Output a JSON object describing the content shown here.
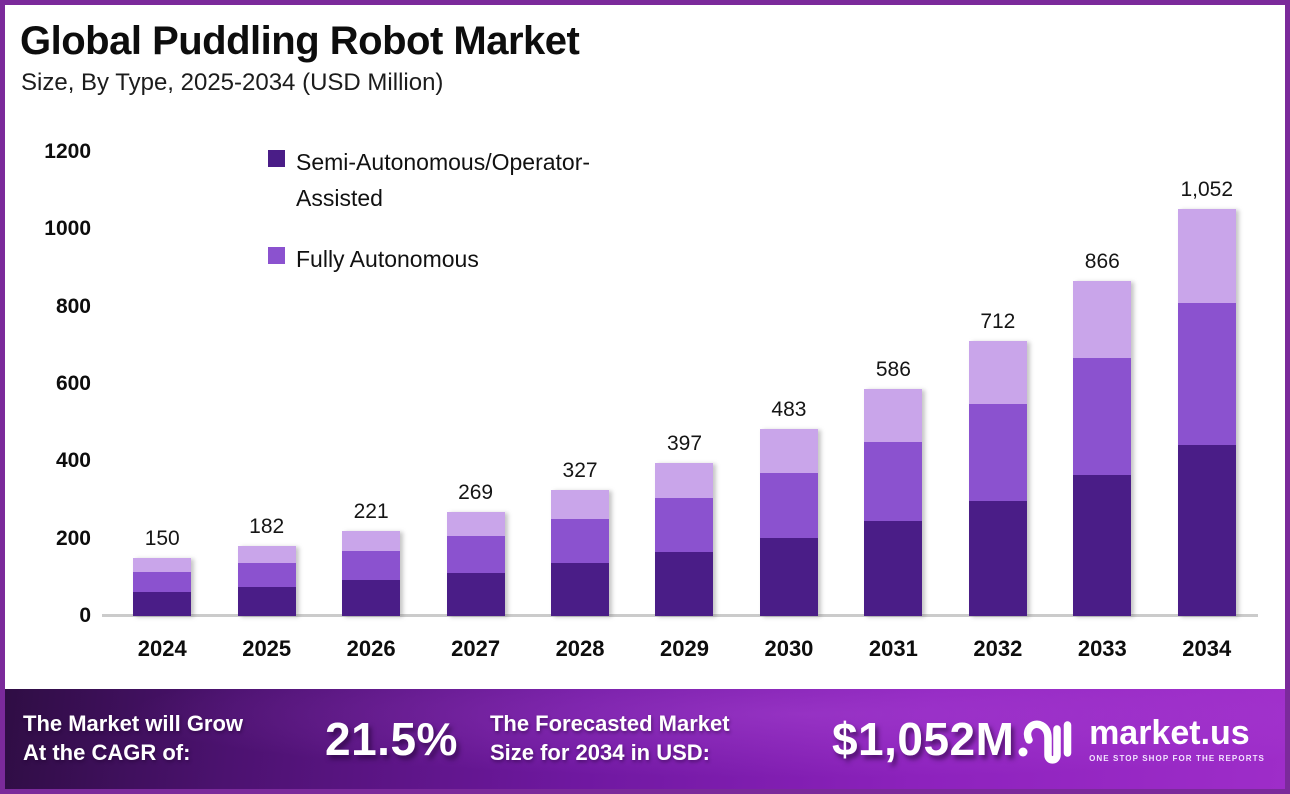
{
  "header": {
    "title": "Global Puddling Robot Market",
    "subtitle": "Size, By Type, 2025-2034 (USD Million)"
  },
  "chart_data": {
    "type": "bar",
    "stacked": true,
    "title": "Global Puddling Robot Market Size, By Type, 2025-2034 (USD Million)",
    "categories": [
      "2024",
      "2025",
      "2026",
      "2027",
      "2028",
      "2029",
      "2030",
      "2031",
      "2032",
      "2033",
      "2034"
    ],
    "totals": [
      150,
      182,
      221,
      269,
      327,
      397,
      483,
      586,
      712,
      866,
      1052
    ],
    "total_labels": [
      "150",
      "182",
      "221",
      "269",
      "327",
      "397",
      "483",
      "586",
      "712",
      "866",
      "1,052"
    ],
    "series": [
      {
        "name": "Semi-Autonomous/Operator-Assisted",
        "color": "#4a1d87",
        "values": [
          62,
          75,
          92,
          112,
          136,
          165,
          202,
          246,
          298,
          364,
          442
        ]
      },
      {
        "name": "Fully Autonomous",
        "color": "#8b52cf",
        "values": [
          53,
          62,
          77,
          94,
          115,
          141,
          169,
          203,
          250,
          304,
          368
        ]
      },
      {
        "name": "",
        "color": "#c9a5ea",
        "values": [
          35,
          45,
          52,
          63,
          76,
          91,
          112,
          137,
          164,
          198,
          242
        ]
      }
    ],
    "xlabel": "",
    "ylabel": "",
    "ylim": [
      0,
      1200
    ],
    "yticks": [
      0,
      200,
      400,
      600,
      800,
      1000,
      1200
    ],
    "grid": false,
    "legend_position": "top-left-inside"
  },
  "legend": {
    "items": [
      {
        "label": "Semi-Autonomous/Operator-Assisted",
        "color": "#4a1d87"
      },
      {
        "label": "Fully Autonomous",
        "color": "#8b52cf"
      }
    ]
  },
  "footer": {
    "growth_label_line1": "The Market will Grow",
    "growth_label_line2": "At the CAGR of:",
    "cagr_value": "21.5%",
    "forecast_label_line1": "The Forecasted Market",
    "forecast_label_line2": "Size for 2034 in USD:",
    "forecast_value": "$1,052M",
    "brand": {
      "name": "market.us",
      "tagline": "ONE STOP SHOP FOR THE REPORTS"
    }
  },
  "colors": {
    "frame_border": "#7b2a9b",
    "axis_line": "#cbcbcb",
    "banner_dark": "#2f0d44",
    "banner_bright": "#9e2dc9",
    "text": "#0d0d0d"
  }
}
